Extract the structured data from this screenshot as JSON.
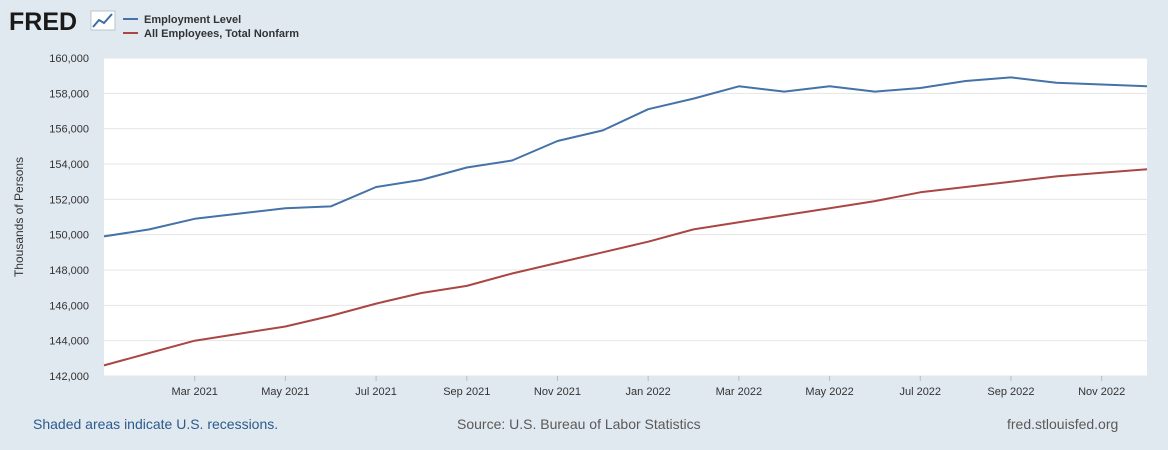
{
  "logo": {
    "text": "FRED"
  },
  "colors": {
    "page_bg": "#e1e9f0",
    "plot_bg": "#ffffff",
    "grid": "#e6e6e6",
    "axis_text": "#333333"
  },
  "chart_data": {
    "type": "line",
    "x": [
      "Jan 2021",
      "Feb 2021",
      "Mar 2021",
      "Apr 2021",
      "May 2021",
      "Jun 2021",
      "Jul 2021",
      "Aug 2021",
      "Sep 2021",
      "Oct 2021",
      "Nov 2021",
      "Dec 2021",
      "Jan 2022",
      "Feb 2022",
      "Mar 2022",
      "Apr 2022",
      "May 2022",
      "Jun 2022",
      "Jul 2022",
      "Aug 2022",
      "Sep 2022",
      "Oct 2022",
      "Nov 2022",
      "Dec 2022"
    ],
    "series": [
      {
        "name": "Employment Level",
        "color": "#4572a7",
        "values": [
          149.9,
          150.3,
          150.9,
          151.2,
          151.5,
          151.6,
          152.7,
          153.1,
          153.8,
          154.2,
          155.3,
          155.9,
          157.1,
          157.7,
          158.4,
          158.1,
          158.4,
          158.1,
          158.3,
          158.7,
          158.9,
          158.6,
          158.5,
          158.4
        ]
      },
      {
        "name": "All Employees, Total Nonfarm",
        "color": "#aa4643",
        "values": [
          142.6,
          143.3,
          144.0,
          144.4,
          144.8,
          145.4,
          146.1,
          146.7,
          147.1,
          147.8,
          148.4,
          149.0,
          149.6,
          150.3,
          150.7,
          151.1,
          151.5,
          151.9,
          152.4,
          152.7,
          153.0,
          153.3,
          153.5,
          153.7
        ]
      }
    ],
    "ylim": [
      142000,
      160000
    ],
    "yticks": [
      142000,
      144000,
      146000,
      148000,
      150000,
      152000,
      154000,
      156000,
      158000,
      160000
    ],
    "ytick_labels": [
      "142,000",
      "144,000",
      "146,000",
      "148,000",
      "150,000",
      "152,000",
      "154,000",
      "156,000",
      "158,000",
      "160,000"
    ],
    "xtick_labels": [
      "Mar 2021",
      "May 2021",
      "Jul 2021",
      "Sep 2021",
      "Nov 2021",
      "Jan 2022",
      "Mar 2022",
      "May 2022",
      "Jul 2022",
      "Sep 2022",
      "Nov 2022"
    ],
    "xtick_index": [
      2,
      4,
      6,
      8,
      10,
      12,
      14,
      16,
      18,
      20,
      22
    ],
    "ylabel": "Thousands of Persons",
    "title": ""
  },
  "footer": {
    "note": "Shaded areas indicate U.S. recessions.",
    "source": "Source: U.S. Bureau of Labor Statistics",
    "url": "fred.stlouisfed.org"
  }
}
